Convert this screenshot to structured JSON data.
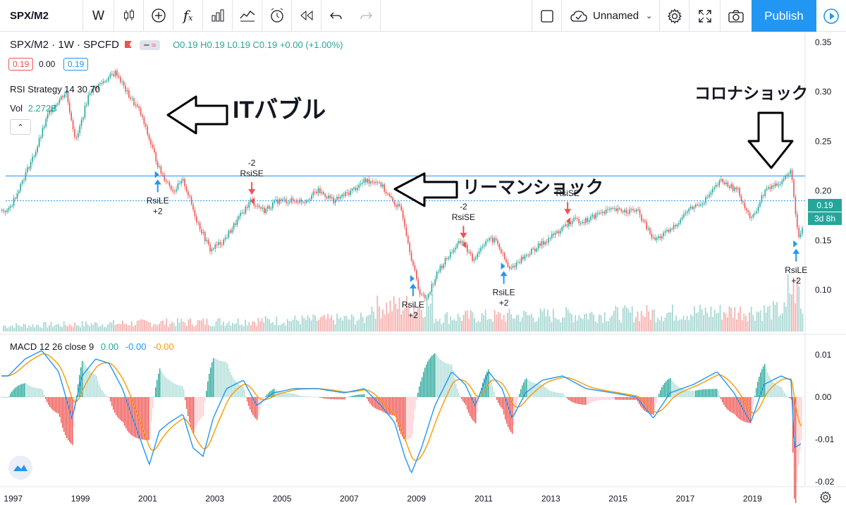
{
  "toolbar": {
    "symbol": "SPX/M2",
    "interval": "W",
    "layout_name": "Unnamed",
    "publish_label": "Publish"
  },
  "legend": {
    "title": "SPX/M2 · 1W · SPCFD",
    "ohlc": "O0.19 H0.19 L0.19 C0.19 +0.00 (+1.00%)",
    "box_left": "0.19",
    "box_mid": "0.00",
    "box_right": "0.19",
    "strategy": "RSI Strategy 14 30 70",
    "vol_label": "Vol",
    "vol_value": "2.272B",
    "macd_title": "MACD 12 26 close 9",
    "macd_v1": "0.00",
    "macd_v2": "-0.00",
    "macd_v3": "-0.00"
  },
  "price_badge": {
    "value": "0.19",
    "countdown": "3d 8h"
  },
  "annotations": {
    "it_bubble": "ITバブル",
    "lehman": "リーマンショック",
    "corona": "コロナショック"
  },
  "colors": {
    "up": "#26a69a",
    "down": "#ef5350",
    "accent": "#2196f3",
    "macd_line": "#2196f3",
    "signal_line": "#ff9800",
    "hline": "#2196f3"
  },
  "chart_data": [
    {
      "type": "line",
      "title": "SPX/M2 · 1W · SPCFD",
      "x_ticks": [
        "1997",
        "1999",
        "2001",
        "2003",
        "2005",
        "2007",
        "2009",
        "2011",
        "2013",
        "2015",
        "2017",
        "2019"
      ],
      "y_ticks": [
        "0.35",
        "0.30",
        "0.25",
        "0.20",
        "0.15",
        "0.10"
      ],
      "ylim": [
        0.06,
        0.36
      ],
      "xlim": [
        1996.8,
        2020.7
      ],
      "series": [
        {
          "x": [
            1996.8,
            1997.2,
            1997.6,
            1998.0,
            1998.5,
            1998.8,
            1999.2,
            1999.6,
            2000.0,
            2000.3,
            2000.7,
            2001.0,
            2001.3,
            2001.7,
            2002.0,
            2002.4,
            2002.8,
            2003.2,
            2003.6,
            2004.0,
            2004.4,
            2004.8,
            2005.2,
            2005.6,
            2006.0,
            2006.5,
            2007.0,
            2007.4,
            2007.8,
            2008.2,
            2008.5,
            2008.8,
            2009.0,
            2009.2,
            2009.6,
            2010.0,
            2010.3,
            2010.6,
            2011.0,
            2011.3,
            2011.7,
            2012.0,
            2012.4,
            2012.8,
            2013.2,
            2013.6,
            2014.0,
            2014.5,
            2015.0,
            2015.5,
            2016.0,
            2016.5,
            2017.0,
            2017.5,
            2018.0,
            2018.5,
            2018.9,
            2019.3,
            2019.8,
            2020.1,
            2020.2,
            2020.3,
            2020.5,
            2020.7
          ],
          "values": [
            0.18,
            0.21,
            0.24,
            0.28,
            0.3,
            0.25,
            0.3,
            0.31,
            0.32,
            0.3,
            0.28,
            0.25,
            0.22,
            0.2,
            0.21,
            0.17,
            0.14,
            0.15,
            0.17,
            0.19,
            0.18,
            0.19,
            0.19,
            0.19,
            0.2,
            0.19,
            0.2,
            0.21,
            0.21,
            0.19,
            0.18,
            0.13,
            0.1,
            0.09,
            0.12,
            0.14,
            0.15,
            0.13,
            0.15,
            0.15,
            0.12,
            0.13,
            0.14,
            0.15,
            0.16,
            0.17,
            0.17,
            0.18,
            0.18,
            0.18,
            0.15,
            0.16,
            0.18,
            0.19,
            0.21,
            0.2,
            0.17,
            0.2,
            0.21,
            0.22,
            0.18,
            0.15,
            0.17,
            0.19
          ]
        }
      ],
      "hlines": [
        0.215,
        0.19
      ],
      "signals": [
        {
          "x": 2001.3,
          "label": "RsiLE",
          "count": "+2",
          "kind": "long"
        },
        {
          "x": 2004.1,
          "label": "RsiSE",
          "count": "-2",
          "kind": "short"
        },
        {
          "x": 2008.9,
          "label": "RsiLE",
          "count": "+2",
          "kind": "long"
        },
        {
          "x": 2010.4,
          "label": "RsiSE",
          "count": "-2",
          "kind": "short"
        },
        {
          "x": 2011.6,
          "label": "RsiLE",
          "count": "+2",
          "kind": "long"
        },
        {
          "x": 2013.5,
          "label": "RsiSE",
          "count": "",
          "kind": "short"
        },
        {
          "x": 2020.3,
          "label": "RsiLE",
          "count": "+2",
          "kind": "long"
        }
      ]
    },
    {
      "type": "line",
      "title": "MACD 12 26 close 9",
      "y_ticks": [
        "0.01",
        "0.00",
        "-0.01",
        "-0.02"
      ],
      "ylim": [
        -0.0205,
        0.0125
      ],
      "series": [
        {
          "name": "MACD",
          "x": [
            1996.8,
            1997.3,
            1997.8,
            1998.3,
            1998.7,
            1999.0,
            1999.4,
            1999.8,
            2000.2,
            2000.6,
            2001.0,
            2001.3,
            2001.6,
            2002.0,
            2002.3,
            2002.6,
            2002.9,
            2003.3,
            2003.8,
            2004.2,
            2004.7,
            2005.3,
            2006.0,
            2006.8,
            2007.4,
            2007.9,
            2008.3,
            2008.6,
            2008.8,
            2009.1,
            2009.5,
            2010.0,
            2010.4,
            2010.7,
            2011.1,
            2011.5,
            2011.8,
            2012.2,
            2012.7,
            2013.3,
            2014.0,
            2014.8,
            2015.5,
            2016.0,
            2016.5,
            2017.2,
            2017.9,
            2018.4,
            2018.9,
            2019.3,
            2019.8,
            2020.1,
            2020.2,
            2020.4,
            2020.7
          ],
          "values": [
            0.005,
            0.009,
            0.011,
            0.006,
            -0.005,
            0.005,
            0.009,
            0.008,
            0.002,
            -0.007,
            -0.016,
            -0.008,
            -0.006,
            -0.004,
            -0.012,
            -0.014,
            -0.005,
            0.002,
            0.004,
            -0.002,
            0.001,
            0.002,
            0.002,
            0.001,
            0.002,
            -0.002,
            -0.006,
            -0.014,
            -0.018,
            -0.012,
            -0.002,
            0.006,
            0.003,
            -0.002,
            0.006,
            0.002,
            -0.005,
            0.001,
            0.004,
            0.005,
            0.002,
            0.001,
            0.0,
            -0.005,
            0.001,
            0.003,
            0.006,
            0.001,
            -0.006,
            0.003,
            0.005,
            0.004,
            -0.012,
            -0.011,
            -0.002
          ]
        }
      ]
    }
  ]
}
